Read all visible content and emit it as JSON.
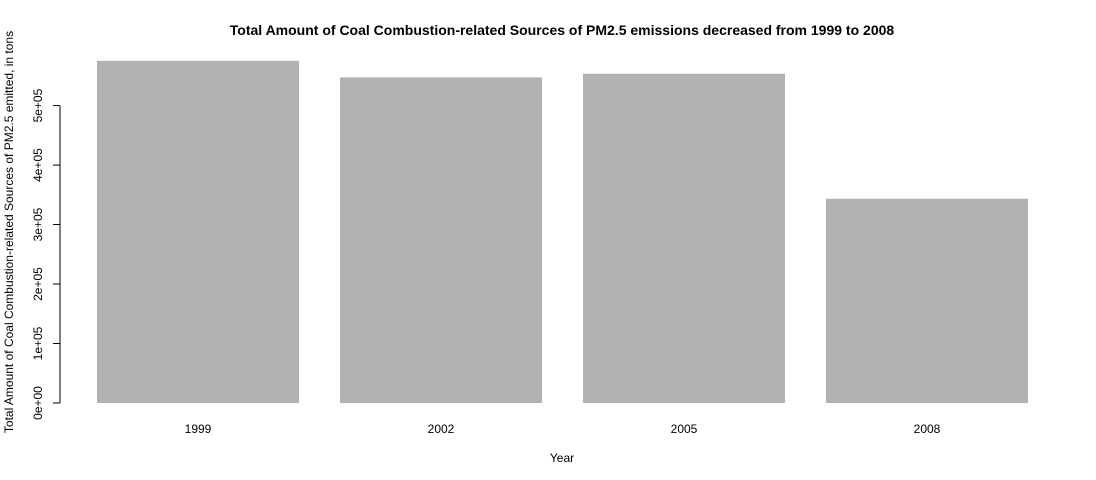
{
  "chart_data": {
    "type": "bar",
    "title": "Total Amount of Coal Combustion-related Sources of PM2.5 emissions decreased from 1999 to 2008",
    "xlabel": "Year",
    "ylabel": "Total Amount of Coal Combustion-related Sources of PM2.5 emitted, in tons",
    "categories": [
      "1999",
      "2002",
      "2005",
      "2008"
    ],
    "values": [
      575207,
      547382,
      553549,
      343432
    ],
    "ylim": [
      0,
      580000
    ],
    "yticks": [
      0,
      100000,
      200000,
      300000,
      400000,
      500000
    ],
    "ytick_labels": [
      "0e+00",
      "1e+05",
      "2e+05",
      "3e+05",
      "4e+05",
      "5e+05"
    ],
    "grid": false,
    "legend": "none",
    "bar_color": "#b2b2b2"
  }
}
